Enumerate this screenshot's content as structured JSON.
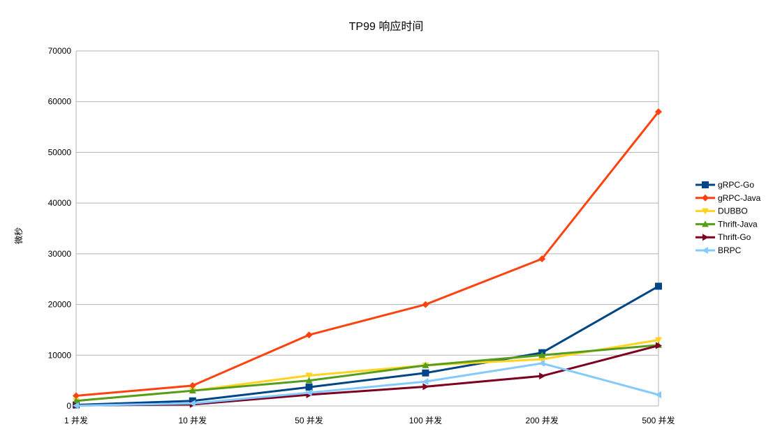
{
  "chart_data": {
    "type": "line",
    "title": "TP99 响应时间",
    "xlabel": "",
    "ylabel": "微秒",
    "categories": [
      "1 并发",
      "10 并发",
      "50 并发",
      "100 并发",
      "200 并发",
      "500 并发"
    ],
    "ylim": [
      0,
      70000
    ],
    "yticks": [
      0,
      10000,
      20000,
      30000,
      40000,
      50000,
      60000,
      70000
    ],
    "grid": true,
    "legend_position": "right",
    "series": [
      {
        "name": "gRPC-Go",
        "color": "#004586",
        "marker": "square",
        "values": [
          200,
          1000,
          3700,
          6500,
          10500,
          23600
        ]
      },
      {
        "name": "gRPC-Java",
        "color": "#ff420e",
        "marker": "diamond",
        "values": [
          2000,
          4000,
          14000,
          20000,
          29000,
          58000
        ]
      },
      {
        "name": "DUBBO",
        "color": "#ffd320",
        "marker": "triangle-down",
        "values": [
          1000,
          3000,
          6000,
          8000,
          9200,
          13000
        ]
      },
      {
        "name": "Thrift-Java",
        "color": "#579d1c",
        "marker": "triangle-up",
        "values": [
          1000,
          3000,
          5000,
          8000,
          10000,
          12000
        ]
      },
      {
        "name": "Thrift-Go",
        "color": "#7e0021",
        "marker": "triangle-right",
        "values": [
          100,
          300,
          2200,
          3800,
          5900,
          11900
        ]
      },
      {
        "name": "BRPC",
        "color": "#83caff",
        "marker": "triangle-left",
        "values": [
          50,
          500,
          2600,
          4800,
          8400,
          2200
        ]
      }
    ]
  }
}
